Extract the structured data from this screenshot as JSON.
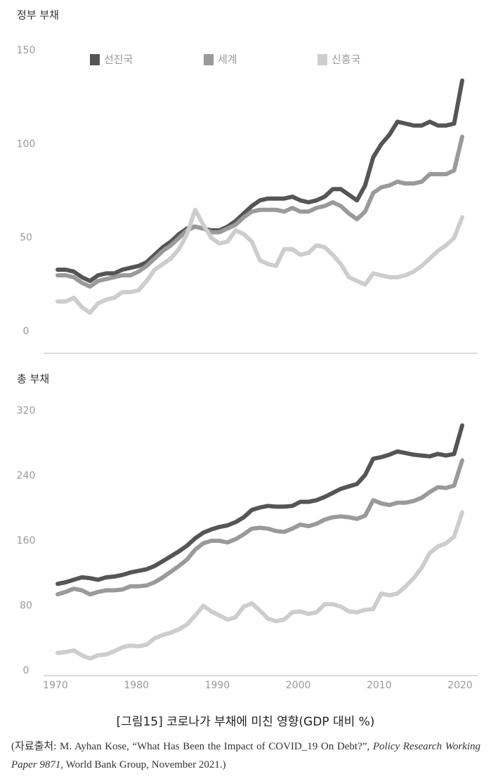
{
  "chart_data": [
    {
      "type": "line",
      "title": "정부 부채",
      "legend": "top",
      "x": [
        1970,
        1971,
        1972,
        1973,
        1974,
        1975,
        1976,
        1977,
        1978,
        1979,
        1980,
        1981,
        1982,
        1983,
        1984,
        1985,
        1986,
        1987,
        1988,
        1989,
        1990,
        1991,
        1992,
        1993,
        1994,
        1995,
        1996,
        1997,
        1998,
        1999,
        2000,
        2001,
        2002,
        2003,
        2004,
        2005,
        2006,
        2007,
        2008,
        2009,
        2010,
        2011,
        2012,
        2013,
        2014,
        2015,
        2016,
        2017,
        2018,
        2019,
        2020
      ],
      "xlim": [
        1970,
        2020
      ],
      "ylim": [
        0,
        150
      ],
      "yticks": [
        0,
        50,
        100,
        150
      ],
      "series": [
        {
          "name": "선진국",
          "color": "#555555",
          "values": [
            33,
            33,
            32,
            29,
            27,
            30,
            31,
            31,
            33,
            34,
            35,
            37,
            41,
            45,
            48,
            52,
            55,
            56,
            55,
            54,
            54,
            56,
            59,
            63,
            67,
            70,
            71,
            71,
            71,
            72,
            70,
            69,
            70,
            72,
            76,
            76,
            73,
            70,
            78,
            93,
            100,
            105,
            112,
            111,
            110,
            110,
            112,
            110,
            110,
            111,
            134
          ]
        },
        {
          "name": "세계",
          "color": "#9a9a9a",
          "values": [
            30,
            30,
            29,
            26,
            24,
            27,
            28,
            29,
            30,
            30,
            32,
            35,
            39,
            43,
            46,
            50,
            54,
            56,
            55,
            53,
            53,
            55,
            57,
            61,
            64,
            65,
            65,
            65,
            64,
            66,
            64,
            64,
            66,
            67,
            69,
            67,
            63,
            60,
            64,
            74,
            77,
            78,
            80,
            79,
            79,
            80,
            84,
            84,
            84,
            86,
            104
          ]
        },
        {
          "name": "신흥국",
          "color": "#cdcdcd",
          "values": [
            16,
            16,
            18,
            13,
            10,
            15,
            17,
            18,
            21,
            21,
            22,
            27,
            33,
            36,
            39,
            44,
            52,
            65,
            57,
            50,
            47,
            48,
            54,
            52,
            48,
            38,
            36,
            35,
            44,
            44,
            41,
            42,
            46,
            45,
            41,
            36,
            29,
            27,
            25,
            31,
            30,
            29,
            29,
            30,
            32,
            35,
            39,
            43,
            46,
            50,
            61
          ]
        }
      ]
    },
    {
      "type": "line",
      "title": "총 부채",
      "x": [
        1970,
        1971,
        1972,
        1973,
        1974,
        1975,
        1976,
        1977,
        1978,
        1979,
        1980,
        1981,
        1982,
        1983,
        1984,
        1985,
        1986,
        1987,
        1988,
        1989,
        1990,
        1991,
        1992,
        1993,
        1994,
        1995,
        1996,
        1997,
        1998,
        1999,
        2000,
        2001,
        2002,
        2003,
        2004,
        2005,
        2006,
        2007,
        2008,
        2009,
        2010,
        2011,
        2012,
        2013,
        2014,
        2015,
        2016,
        2017,
        2018,
        2019,
        2020
      ],
      "xlim": [
        1970,
        2020
      ],
      "xticks": [
        1970,
        1980,
        1990,
        2000,
        2010,
        2020
      ],
      "ylim": [
        0,
        320
      ],
      "yticks": [
        0,
        80,
        160,
        240,
        320
      ],
      "series": [
        {
          "color": "#555555",
          "values": [
            107,
            109,
            112,
            115,
            114,
            112,
            115,
            116,
            118,
            121,
            123,
            125,
            129,
            135,
            141,
            147,
            154,
            163,
            170,
            174,
            177,
            179,
            183,
            189,
            198,
            201,
            203,
            202,
            202,
            203,
            208,
            208,
            210,
            214,
            219,
            224,
            227,
            230,
            241,
            261,
            263,
            266,
            270,
            268,
            266,
            265,
            264,
            267,
            265,
            267,
            302
          ]
        },
        {
          "color": "#9a9a9a",
          "values": [
            94,
            97,
            101,
            99,
            94,
            97,
            99,
            99,
            100,
            104,
            104,
            105,
            109,
            115,
            122,
            129,
            137,
            149,
            157,
            160,
            160,
            158,
            162,
            168,
            175,
            176,
            175,
            172,
            171,
            175,
            180,
            178,
            181,
            186,
            189,
            190,
            189,
            187,
            191,
            210,
            206,
            204,
            207,
            207,
            209,
            213,
            220,
            226,
            225,
            228,
            259
          ]
        },
        {
          "color": "#cdcdcd",
          "values": [
            22,
            23,
            25,
            19,
            15,
            19,
            20,
            24,
            29,
            31,
            30,
            32,
            40,
            44,
            47,
            51,
            57,
            68,
            80,
            73,
            68,
            63,
            66,
            79,
            83,
            74,
            64,
            61,
            63,
            72,
            73,
            70,
            72,
            82,
            82,
            79,
            73,
            72,
            75,
            76,
            95,
            93,
            95,
            104,
            114,
            127,
            145,
            153,
            157,
            165,
            195
          ]
        }
      ]
    }
  ],
  "caption": "[그림15] 코로나가 부채에 미친 영향(GDP 대비 %)",
  "source": [
    "(자료출처: M. Ayhan Kose, “What Has Been the Impact of COVID_19 On Debt?”, ",
    "Policy Research Working Paper 9871",
    ", World Bank Group, November 2021.)"
  ]
}
